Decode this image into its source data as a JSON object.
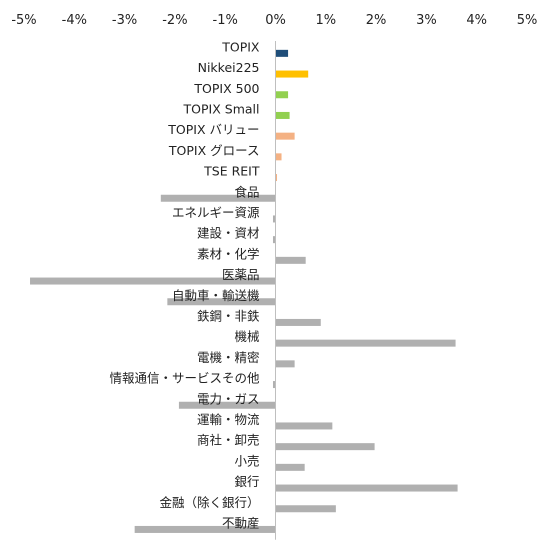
{
  "chart_data": {
    "type": "bar",
    "orientation": "horizontal",
    "title": "",
    "xlabel": "",
    "ylabel": "",
    "xlim": [
      -5,
      5
    ],
    "x_ticks": [
      "-5%",
      "-4%",
      "-3%",
      "-2%",
      "-1%",
      "0%",
      "1%",
      "2%",
      "3%",
      "4%",
      "5%"
    ],
    "x_tick_values": [
      -5,
      -4,
      -3,
      -2,
      -1,
      0,
      1,
      2,
      3,
      4,
      5
    ],
    "x_axis_position": "top",
    "grid": false,
    "legend": "none",
    "colors": {
      "topix": "#1f4e79",
      "nikkei": "#ffc000",
      "green": "#92d050",
      "salmon": "#f4b183",
      "gray": "#b0b0b0",
      "axis": "#bfbfbf"
    },
    "categories": [
      "TOPIX",
      "Nikkei225",
      "TOPIX 500",
      "TOPIX Small",
      "TOPIX バリュー",
      "TOPIX グロース",
      "TSE REIT",
      "食品",
      "エネルギー資源",
      "建設・資材",
      "素材・化学",
      "医薬品",
      "自動車・輸送機",
      "鉄鋼・非鉄",
      "機械",
      "電機・精密",
      "情報通信・サービスその他",
      "電力・ガス",
      "運輸・物流",
      "商社・卸売",
      "小売",
      "銀行",
      "金融（除く銀行）",
      "不動産"
    ],
    "values": [
      0.25,
      0.65,
      0.25,
      0.28,
      0.38,
      0.12,
      0.03,
      -2.28,
      -0.05,
      -0.05,
      0.6,
      -4.88,
      -2.15,
      0.9,
      3.58,
      0.38,
      -0.05,
      -1.92,
      1.13,
      1.97,
      0.58,
      3.62,
      1.2,
      -2.8
    ],
    "bar_colors": [
      "topix",
      "nikkei",
      "green",
      "green",
      "salmon",
      "salmon",
      "salmon",
      "gray",
      "gray",
      "gray",
      "gray",
      "gray",
      "gray",
      "gray",
      "gray",
      "gray",
      "gray",
      "gray",
      "gray",
      "gray",
      "gray",
      "gray",
      "gray",
      "gray"
    ]
  }
}
